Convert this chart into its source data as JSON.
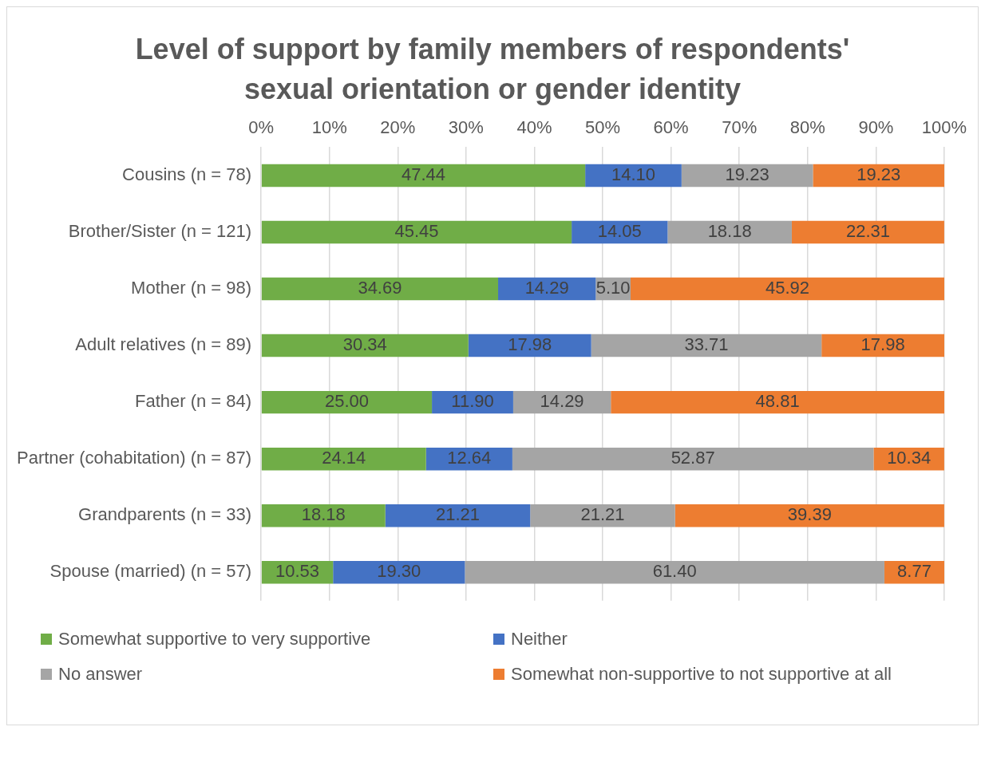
{
  "chart_data": {
    "type": "bar",
    "orientation": "horizontal",
    "stacked": true,
    "title": "Level of support by family members of respondents' sexual orientation or gender identity",
    "categories": [
      "Cousins (n = 78)",
      "Brother/Sister (n = 121)",
      "Mother (n = 98)",
      "Adult relatives (n = 89)",
      "Father (n = 84)",
      "Partner (cohabitation) (n = 87)",
      "Grandparents (n = 33)",
      "Spouse (married) (n = 57)"
    ],
    "series": [
      {
        "name": "Somewhat supportive to very supportive",
        "color": "#70ad47",
        "values": [
          47.44,
          45.45,
          34.69,
          30.34,
          25.0,
          24.14,
          18.18,
          10.53
        ],
        "value_labels": [
          "47.44",
          "45.45",
          "34.69",
          "30.34",
          "25.00",
          "24.14",
          "18.18",
          "10.53"
        ]
      },
      {
        "name": "Neither",
        "color": "#4472c4",
        "values": [
          14.1,
          14.05,
          14.29,
          17.98,
          11.9,
          12.64,
          21.21,
          19.3
        ],
        "value_labels": [
          "14.10",
          "14.05",
          "14.29",
          "17.98",
          "11.90",
          "12.64",
          "21.21",
          "19.30"
        ]
      },
      {
        "name": "No answer",
        "color": "#a5a5a5",
        "values": [
          19.23,
          18.18,
          5.1,
          33.71,
          14.29,
          52.87,
          21.21,
          61.4
        ],
        "value_labels": [
          "19.23",
          "18.18",
          "5.10",
          "33.71",
          "14.29",
          "52.87",
          "21.21",
          "61.40"
        ]
      },
      {
        "name": "Somewhat non-supportive to not supportive at all",
        "color": "#ed7d31",
        "values": [
          19.23,
          22.31,
          45.92,
          17.98,
          48.81,
          10.34,
          39.39,
          8.77
        ],
        "value_labels": [
          "19.23",
          "22.31",
          "45.92",
          "17.98",
          "48.81",
          "10.34",
          "39.39",
          "8.77"
        ]
      }
    ],
    "xlim": [
      0,
      100
    ],
    "xticks": [
      {
        "value": 0,
        "label": "0%"
      },
      {
        "value": 10,
        "label": "10%"
      },
      {
        "value": 20,
        "label": "20%"
      },
      {
        "value": 30,
        "label": "30%"
      },
      {
        "value": 40,
        "label": "40%"
      },
      {
        "value": 50,
        "label": "50%"
      },
      {
        "value": 60,
        "label": "60%"
      },
      {
        "value": 70,
        "label": "70%"
      },
      {
        "value": 80,
        "label": "80%"
      },
      {
        "value": 90,
        "label": "90%"
      },
      {
        "value": 100,
        "label": "100%"
      }
    ],
    "grid": "x",
    "legend": "bottom"
  }
}
